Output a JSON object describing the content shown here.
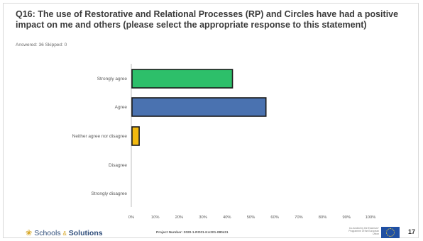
{
  "slide": {
    "title": "Q16: The use of Restorative and Relational Processes (RP) and Circles have had a positive impact on me and others (please select the appropriate response to this statement)",
    "answered_line": "Answered: 36 Skipped: 0",
    "page_number": "17",
    "project_number": "Project Number: 2020-1-RO01-KA201-080411",
    "eu_text": "Co-funded by the Erasmus+ Programme of the European Union",
    "logo": {
      "part1": "Schools",
      "amp": "&",
      "part2": "Solutions",
      "icon": "person-figure-icon"
    }
  },
  "chart_data": {
    "type": "bar",
    "orientation": "horizontal",
    "categories": [
      "Strongly agree",
      "Agree",
      "Neither agree nor disagree",
      "Disagree",
      "Strongly disagree"
    ],
    "values": [
      42,
      56,
      3,
      0,
      0
    ],
    "colors": [
      "#2dbf6a",
      "#4a72b0",
      "#f2b90f",
      "#cccccc",
      "#cccccc"
    ],
    "bar_outline": "#1a1a1a",
    "xlim": [
      0,
      100
    ],
    "xticks": [
      "0%",
      "10%",
      "20%",
      "30%",
      "40%",
      "50%",
      "60%",
      "70%",
      "80%",
      "90%",
      "100%"
    ],
    "grid": false
  }
}
